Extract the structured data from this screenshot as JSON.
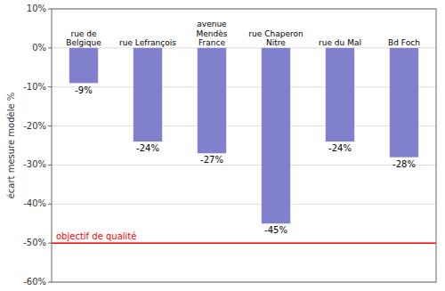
{
  "chart_data": {
    "type": "bar",
    "categories": [
      "rue de Belgique",
      "rue Lefrançois",
      "avenue Mendès France",
      "rue Chaperon Nitre",
      "rue du Mal",
      "Bd Foch"
    ],
    "values": [
      -9,
      -24,
      -27,
      -45,
      -24,
      -28
    ],
    "value_labels": [
      "-9%",
      "-24%",
      "-27%",
      "-45%",
      "-24%",
      "-28%"
    ],
    "data_labels": true,
    "color": "#8080CC",
    "y_label": "écart mesure modèle %",
    "ylim": [
      -60,
      10
    ],
    "yticks": [
      {
        "value": 10,
        "label": "10%"
      },
      {
        "value": 0,
        "label": "0%"
      },
      {
        "value": -10,
        "label": "-10%"
      },
      {
        "value": -20,
        "label": "-20%"
      },
      {
        "value": -30,
        "label": "-30%"
      },
      {
        "value": -40,
        "label": "-40%"
      },
      {
        "value": -50,
        "label": "-50%"
      },
      {
        "value": -60,
        "label": "-60%"
      }
    ],
    "grid": true,
    "annotations": [
      {
        "text": "objectif de qualité",
        "y": -50,
        "color": "#FF0000"
      }
    ]
  }
}
